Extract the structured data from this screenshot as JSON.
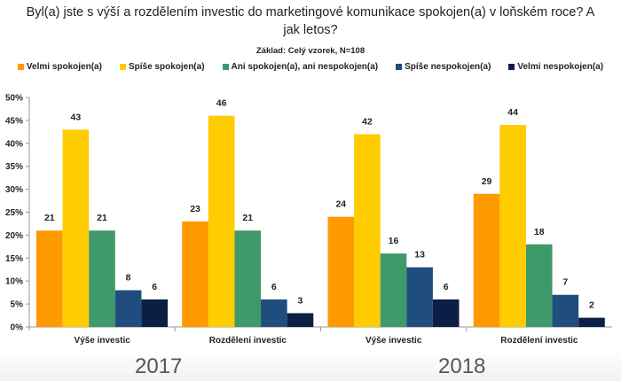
{
  "chart_data": {
    "type": "bar",
    "title": "Byl(a) jste s výší a rozdělením investic do marketingové komunikace spokojen(a) v loňském roce? A jak letos?",
    "subtitle": "Základ: Celý vzorek, N=108",
    "categories": [
      "Výše investic",
      "Rozdělení investic",
      "Výše investic",
      "Rozdělení investic"
    ],
    "groups": [
      "2017",
      "2018"
    ],
    "series": [
      {
        "name": "Velmi spokojen(a)",
        "color": "#FF9900",
        "values": [
          21,
          23,
          24,
          29
        ]
      },
      {
        "name": "Spíše spokojen(a)",
        "color": "#FFCC00",
        "values": [
          43,
          46,
          42,
          44
        ]
      },
      {
        "name": "Ani spokojen(a), ani nespokojen(a)",
        "color": "#3E9A68",
        "values": [
          21,
          21,
          16,
          18
        ]
      },
      {
        "name": "Spíše nespokojen(a)",
        "color": "#1F4E7E",
        "values": [
          8,
          6,
          13,
          7
        ]
      },
      {
        "name": "Velmi nespokojen(a)",
        "color": "#0B1F45",
        "values": [
          6,
          3,
          6,
          2
        ]
      }
    ],
    "ylim": [
      0,
      50
    ],
    "yticks": [
      "0%",
      "5%",
      "10%",
      "15%",
      "20%",
      "25%",
      "30%",
      "35%",
      "40%",
      "45%",
      "50%"
    ],
    "grid": false,
    "legend": "top"
  }
}
